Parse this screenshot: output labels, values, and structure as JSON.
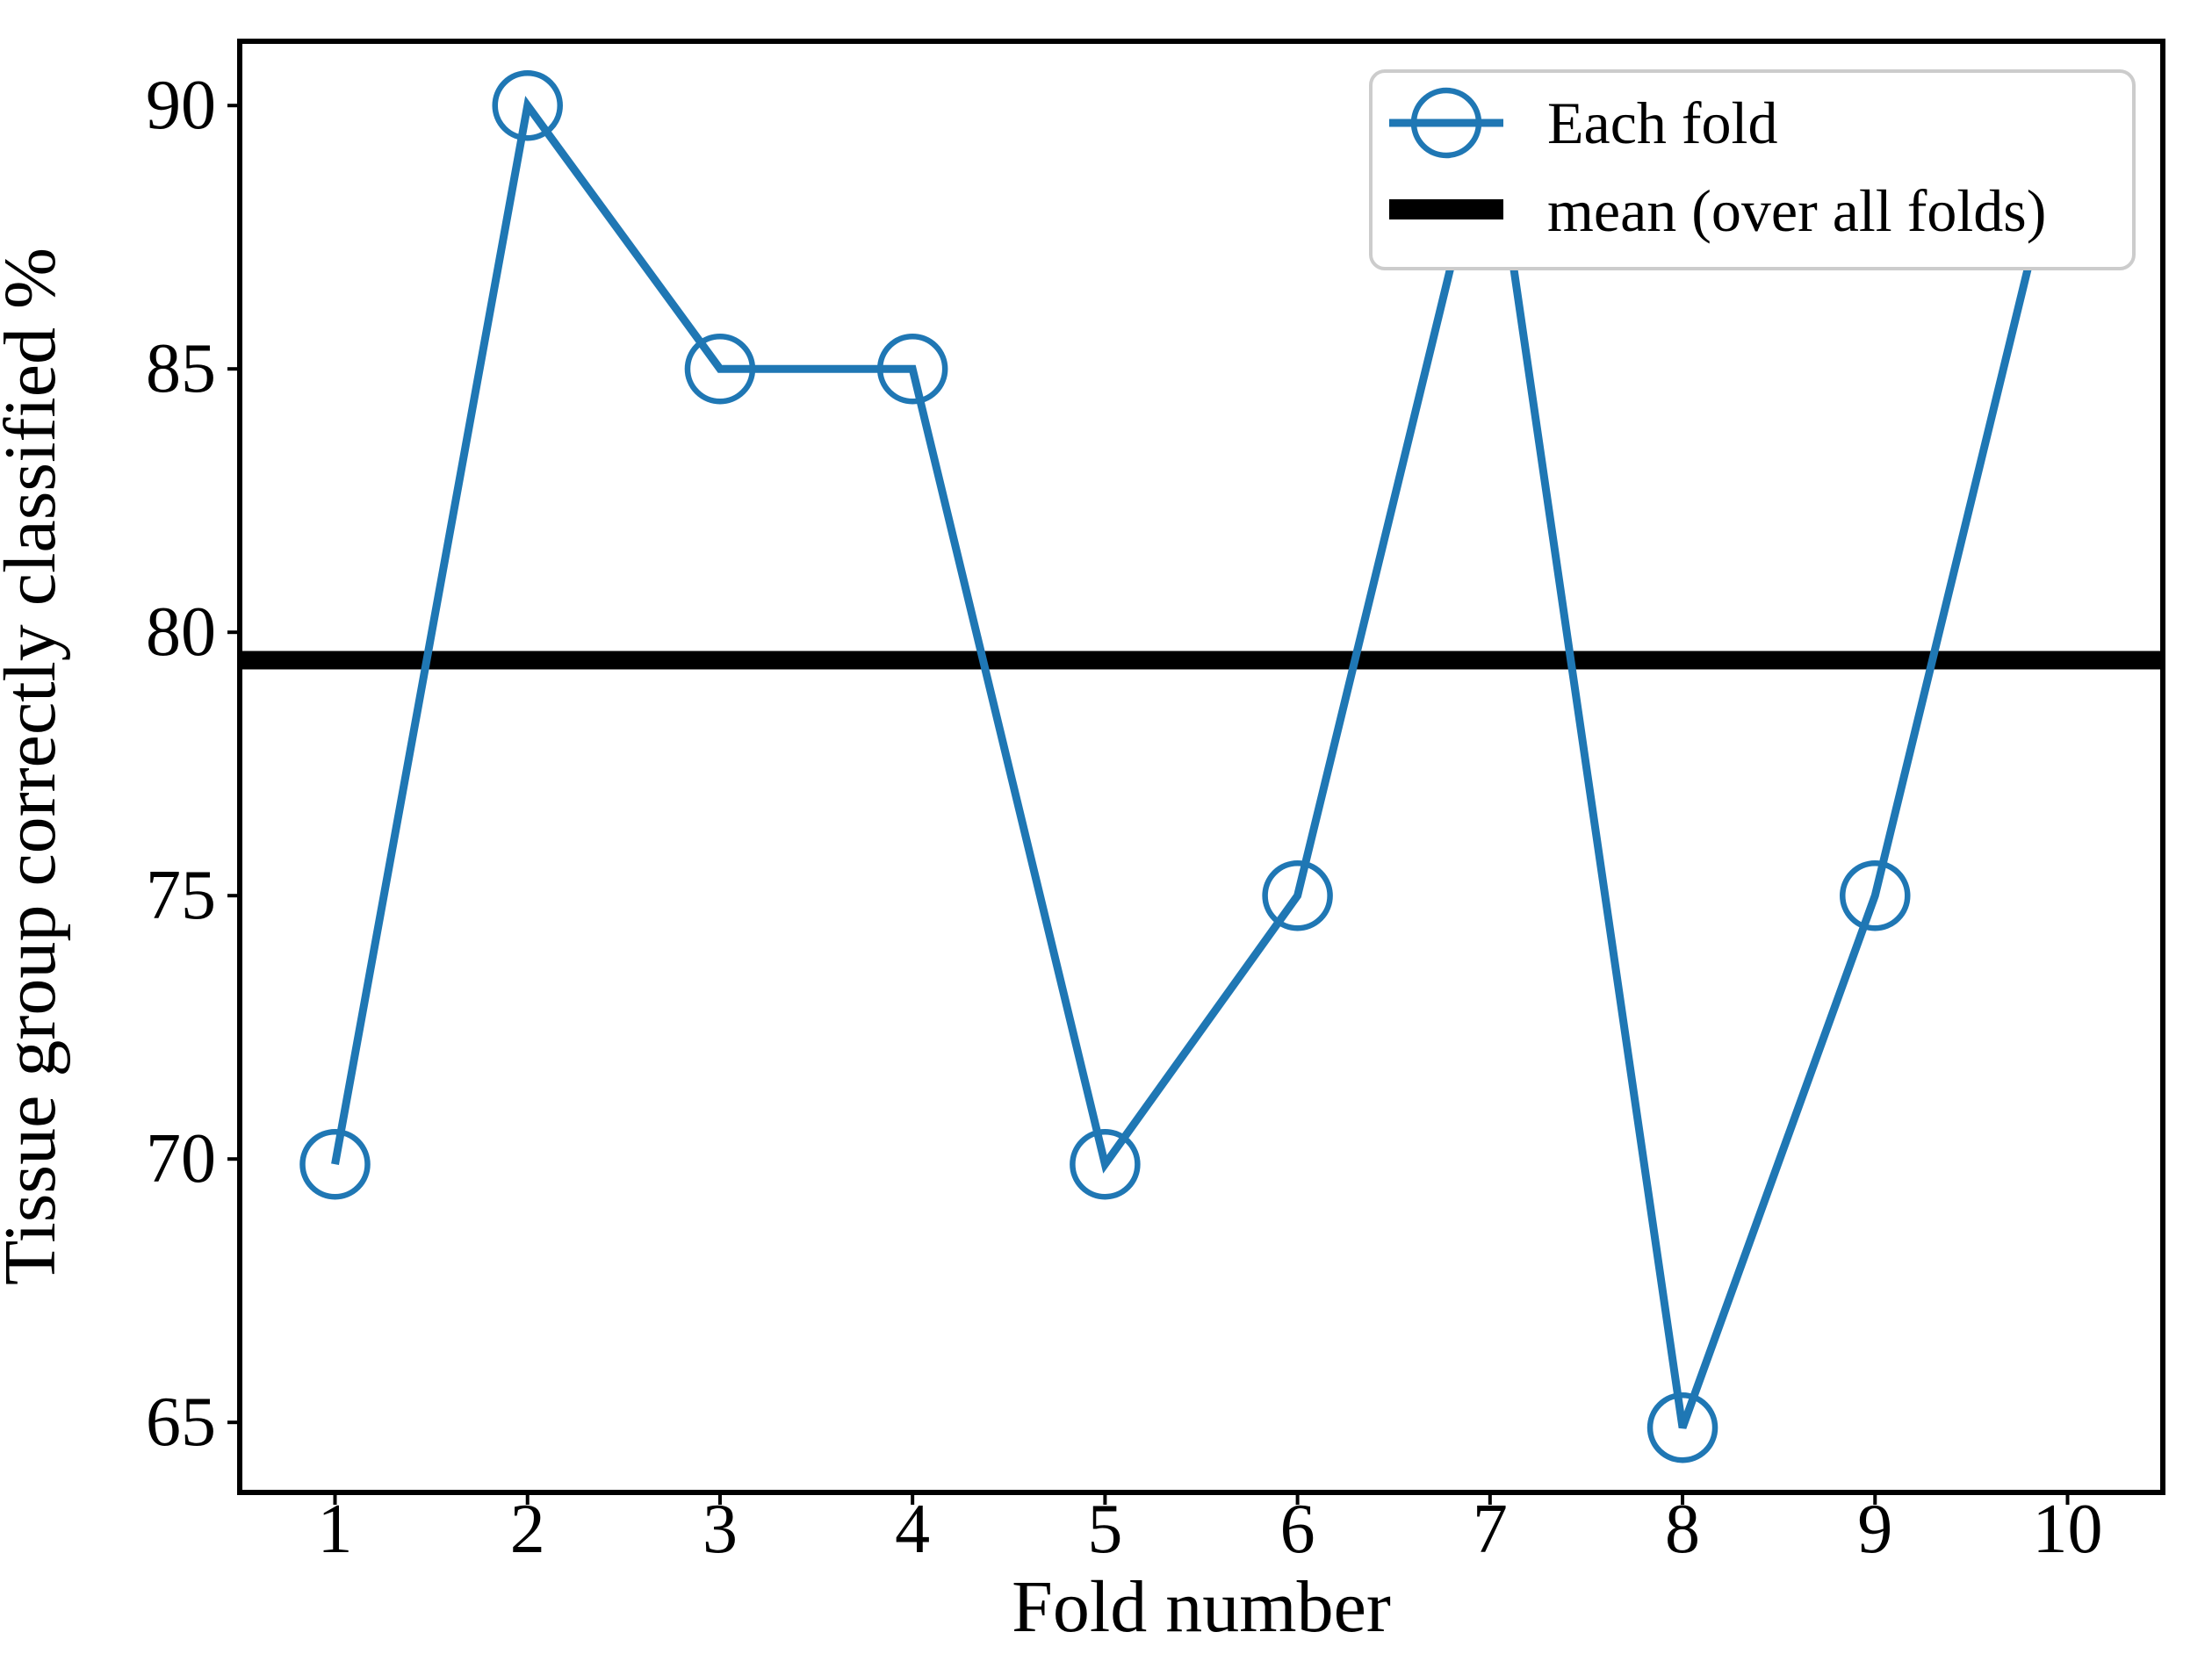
{
  "chart_data": {
    "type": "line",
    "title": "",
    "xlabel": "Fold number",
    "ylabel": "Tissue group correctly classified %",
    "x": [
      1,
      2,
      3,
      4,
      5,
      6,
      7,
      8,
      9,
      10
    ],
    "xtick_labels": [
      "1",
      "2",
      "3",
      "4",
      "5",
      "6",
      "7",
      "8",
      "9",
      "10"
    ],
    "ytick_values": [
      65,
      70,
      75,
      80,
      85,
      90
    ],
    "ytick_labels": [
      "65",
      "70",
      "75",
      "80",
      "85",
      "90"
    ],
    "xlim": [
      0.505,
      10.495
    ],
    "ylim": [
      63.67,
      91.22
    ],
    "grid": false,
    "series": [
      {
        "name": "Each fold",
        "color": "#1f77b4",
        "marker": "open-circle",
        "values": [
          69.9,
          90.0,
          85.0,
          85.0,
          69.9,
          75.0,
          90.0,
          64.9,
          75.0,
          90.0
        ]
      }
    ],
    "mean_line": {
      "label": "mean (over all folds)",
      "color": "#000000",
      "value": 79.47
    },
    "legend": {
      "position": "upper right",
      "items": [
        "Each fold",
        "mean (over all folds)"
      ]
    }
  },
  "colors": {
    "background": "#ffffff",
    "spine": "#000000",
    "legend_border": "#cccccc",
    "legend_background": "#ffffff"
  }
}
